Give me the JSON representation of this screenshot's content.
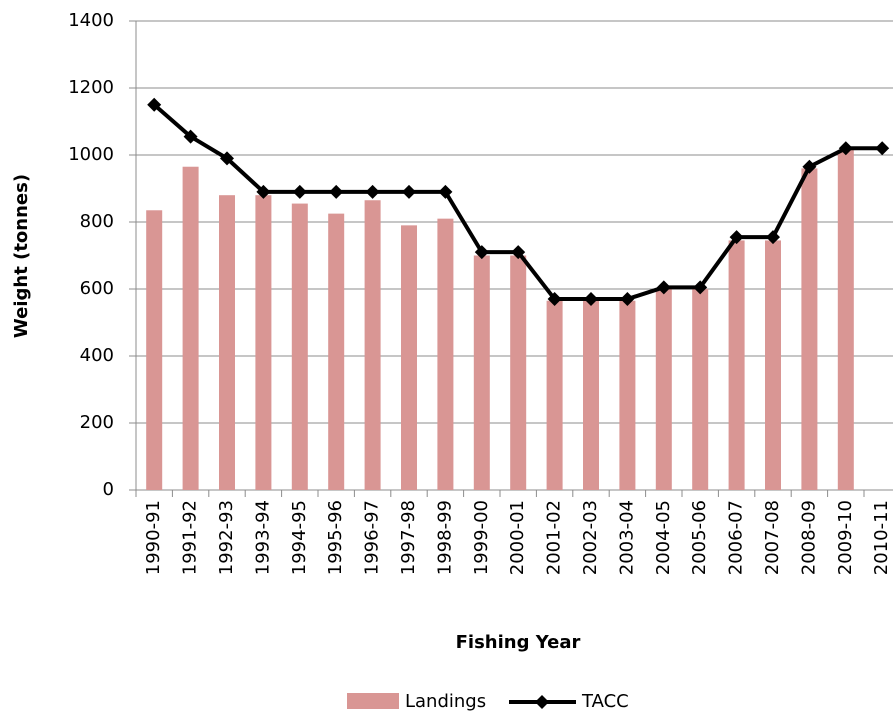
{
  "chart_data": {
    "type": "bar_line",
    "x_label": "Fishing Year",
    "y_label": "Weight (tonnes)",
    "categories": [
      "1990-91",
      "1991-92",
      "1992-93",
      "1993-94",
      "1994-95",
      "1995-96",
      "1996-97",
      "1997-98",
      "1998-99",
      "1999-00",
      "2000-01",
      "2001-02",
      "2002-03",
      "2003-04",
      "2004-05",
      "2005-06",
      "2006-07",
      "2007-08",
      "2008-09",
      "2009-10",
      "2010-11"
    ],
    "series": [
      {
        "name": "Landings",
        "type": "bar",
        "color": "#d99694",
        "values": [
          835,
          965,
          880,
          880,
          855,
          825,
          865,
          790,
          810,
          700,
          700,
          565,
          565,
          565,
          600,
          600,
          745,
          745,
          960,
          1015,
          null
        ]
      },
      {
        "name": "TACC",
        "type": "line",
        "color": "#000000",
        "values": [
          1150,
          1055,
          990,
          890,
          890,
          890,
          890,
          890,
          890,
          710,
          710,
          570,
          570,
          570,
          605,
          605,
          755,
          755,
          965,
          1020,
          1020
        ]
      }
    ],
    "ylim": [
      0,
      1400
    ],
    "yticks": [
      0,
      200,
      400,
      600,
      800,
      1000,
      1200,
      1400
    ],
    "grid": true,
    "legend": "bottom"
  }
}
